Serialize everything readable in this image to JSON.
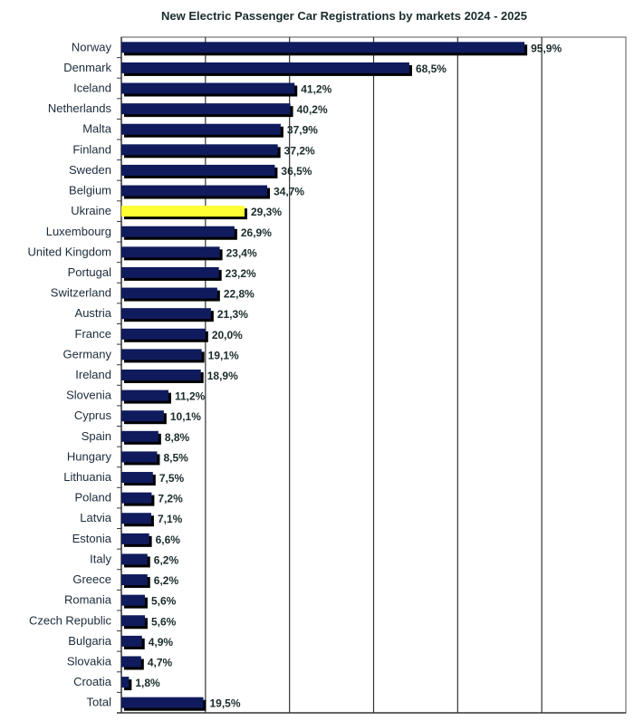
{
  "chart_data": {
    "type": "bar",
    "orientation": "horizontal",
    "title": "New Electric Passenger Car Registrations by markets 2024 - 2025",
    "xlabel": "",
    "ylabel": "",
    "xlim": [
      0,
      120
    ],
    "grid": true,
    "categories": [
      "Norway",
      "Denmark",
      "Iceland",
      "Netherlands",
      "Malta",
      "Finland",
      "Sweden",
      "Belgium",
      "Ukraine",
      "Luxembourg",
      "United Kingdom",
      "Portugal",
      "Switzerland",
      "Austria",
      "France",
      "Germany",
      "Ireland",
      "Slovenia",
      "Cyprus",
      "Spain",
      "Hungary",
      "Lithuania",
      "Poland",
      "Latvia",
      "Estonia",
      "Italy",
      "Greece",
      "Romania",
      "Czech Republic",
      "Bulgaria",
      "Slovakia",
      "Croatia",
      "Total"
    ],
    "values": [
      95.9,
      68.5,
      41.2,
      40.2,
      37.9,
      37.2,
      36.5,
      34.7,
      29.3,
      26.9,
      23.4,
      23.2,
      22.8,
      21.3,
      20.0,
      19.1,
      18.9,
      11.2,
      10.1,
      8.8,
      8.5,
      7.5,
      7.2,
      7.1,
      6.6,
      6.2,
      6.2,
      5.6,
      5.6,
      4.9,
      4.7,
      1.8,
      19.5
    ],
    "labels": [
      "95,9%",
      "68,5%",
      "41,2%",
      "40,2%",
      "37,9%",
      "37,2%",
      "36,5%",
      "34,7%",
      "29,3%",
      "26,9%",
      "23,4%",
      "23,2%",
      "22,8%",
      "21,3%",
      "20,0%",
      "19,1%",
      "18,9%",
      "11,2%",
      "10,1%",
      "8,8%",
      "8,5%",
      "7,5%",
      "7,2%",
      "7,1%",
      "6,6%",
      "6,2%",
      "6,2%",
      "5,6%",
      "5,6%",
      "4,9%",
      "4,7%",
      "1,8%",
      "19,5%"
    ],
    "highlight": "Ukraine",
    "colors": {
      "bar": "#0f1b5c",
      "highlight": "#ffff33",
      "shadow": "#000000"
    }
  }
}
